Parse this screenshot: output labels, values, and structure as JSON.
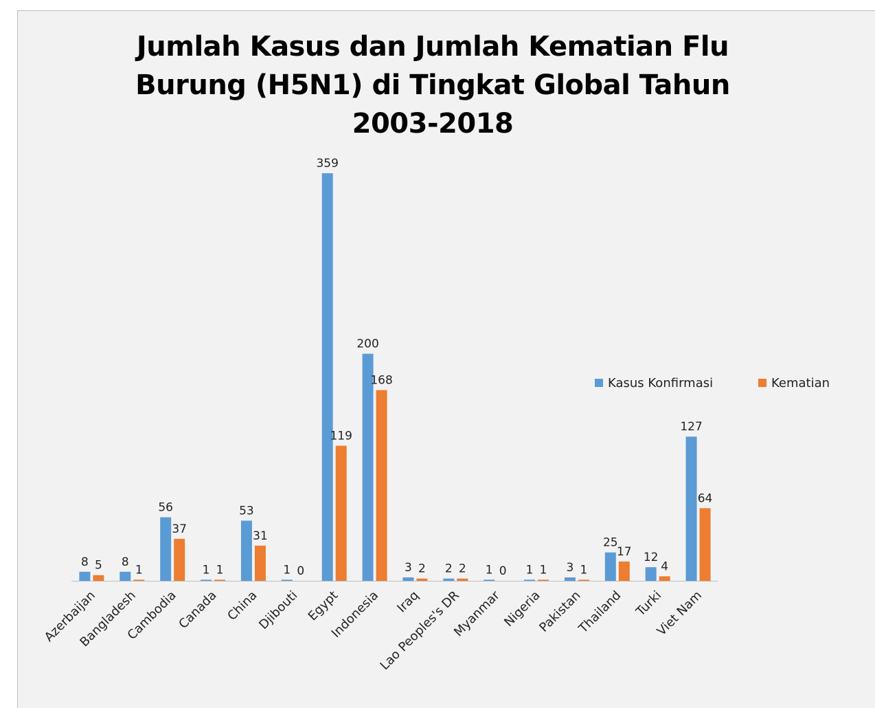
{
  "chart_data": {
    "type": "bar",
    "title": "Jumlah Kasus dan Jumlah Kematian Flu Burung (H5N1) di Tingkat Global Tahun 2003-2018",
    "categories": [
      "Azerbaijan",
      "Bangladesh",
      "Cambodia",
      "Canada",
      "China",
      "Djibouti",
      "Egypt",
      "Indonesia",
      "Iraq",
      "Lao Peoples's DR",
      "Myanmar",
      "Nigeria",
      "Pakistan",
      "Thailand",
      "Turki",
      "Viet Nam"
    ],
    "series": [
      {
        "name": "Kasus Konfirmasi",
        "color": "#5b9bd5",
        "values": [
          8,
          8,
          56,
          1,
          53,
          1,
          359,
          200,
          3,
          2,
          1,
          1,
          3,
          25,
          12,
          127
        ]
      },
      {
        "name": "Kematian",
        "color": "#ed7d31",
        "values": [
          5,
          1,
          37,
          1,
          31,
          0,
          119,
          168,
          2,
          2,
          0,
          1,
          1,
          17,
          4,
          64
        ]
      }
    ],
    "legend": "right"
  }
}
